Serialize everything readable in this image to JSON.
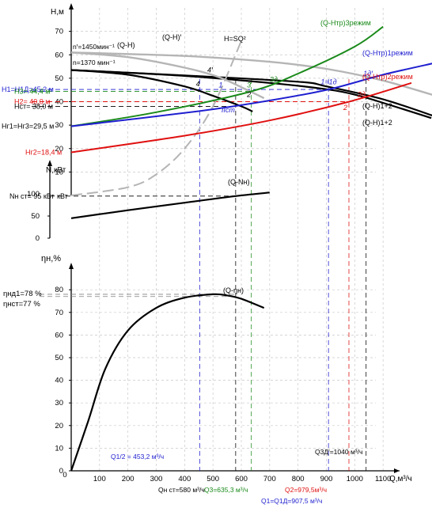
{
  "chart_data": {
    "type": "line",
    "x": {
      "label": "Q,м³/ч",
      "ticks": [
        100,
        200,
        300,
        400,
        500,
        600,
        700,
        800,
        900,
        1000,
        1100
      ],
      "range": [
        0,
        1200
      ]
    },
    "panels": {
      "head": {
        "label": "H,м",
        "ticks": [
          10,
          20,
          30,
          40,
          50,
          60,
          70
        ],
        "range": [
          0,
          80
        ]
      },
      "power": {
        "label": "N,кВт",
        "ticks": [
          0,
          50,
          100
        ],
        "range": [
          0,
          120
        ]
      },
      "efficiency": {
        "label": "ηн,%",
        "ticks": [
          0,
          10,
          20,
          30,
          40,
          50,
          60,
          70,
          80
        ],
        "range": [
          0,
          85
        ]
      }
    },
    "series": [
      {
        "name": "(Q-H)",
        "panel": "head",
        "color": "#000000",
        "dash": "solid",
        "width": 2.2,
        "x": [
          0,
          200,
          400,
          500,
          600,
          640
        ],
        "y": [
          53.5,
          51.5,
          46.5,
          42.5,
          38,
          35.8
        ]
      },
      {
        "name": "(Q-H)1+2",
        "panel": "head",
        "color": "#000000",
        "dash": "solid",
        "width": 2.2,
        "x": [
          0,
          400,
          700,
          900,
          1000,
          1100,
          1270
        ],
        "y": [
          53.5,
          51,
          48,
          45.3,
          43,
          39.5,
          33
        ]
      },
      {
        "name": "(Q-H)1+2",
        "panel": "head",
        "color": "#000000",
        "dash": "solid",
        "width": 2.2,
        "x": [
          0,
          400,
          800,
          900,
          1100,
          1300
        ],
        "y": [
          53.5,
          51.2,
          48.5,
          46.5,
          41,
          33
        ]
      },
      {
        "name": "(Q-H)ꞌ",
        "panel": "head",
        "color": "#b5b5b5",
        "dash": "solid",
        "width": 2.4,
        "x": [
          0,
          200,
          400,
          520,
          620,
          680
        ],
        "y": [
          61,
          59,
          54.5,
          50.5,
          45,
          41.5
        ]
      },
      {
        "name": "(Q-H)ꞌ",
        "panel": "head",
        "color": "#b5b5b5",
        "dash": "solid",
        "width": 2.4,
        "x": [
          0,
          400,
          700,
          900,
          1100,
          1300
        ],
        "y": [
          61,
          59.5,
          57,
          54,
          49,
          42
        ]
      },
      {
        "name": "H=SQ²",
        "panel": "head",
        "color": "#b5b5b5",
        "dash": "long-dash",
        "width": 2,
        "x": [
          0,
          200,
          300,
          400,
          500,
          600
        ],
        "y": [
          0,
          3.5,
          9,
          20,
          38,
          66
        ]
      },
      {
        "name": "(Q-Hтр)3режим",
        "panel": "head",
        "color": "#1a8a1a",
        "dash": "solid",
        "width": 2,
        "x": [
          0,
          300,
          635,
          800,
          1000,
          1100
        ],
        "y": [
          29.5,
          35.5,
          44.4,
          52,
          63.5,
          72
        ]
      },
      {
        "name": "(Q-Hтр)1режим",
        "panel": "head",
        "color": "#1f1fd0",
        "dash": "solid",
        "width": 2,
        "x": [
          0,
          453,
          700,
          907,
          1100,
          1300
        ],
        "y": [
          29.5,
          36,
          40.5,
          45.2,
          51.5,
          57
        ]
      },
      {
        "name": "(Q-Hтр)2режим",
        "panel": "head",
        "color": "#e01010",
        "dash": "solid",
        "width": 2,
        "x": [
          0,
          400,
          700,
          980,
          1200
        ],
        "y": [
          18.4,
          25.5,
          32,
          40,
          48
        ]
      },
      {
        "name": "(Q-Nн)",
        "panel": "power",
        "color": "#000000",
        "dash": "solid",
        "width": 2.2,
        "x": [
          0,
          200,
          400,
          580,
          700
        ],
        "y": [
          45,
          63,
          80,
          95,
          103
        ]
      },
      {
        "name": "(Q-ηн)",
        "panel": "efficiency",
        "color": "#000000",
        "dash": "solid",
        "width": 2.2,
        "x": [
          0,
          60,
          120,
          200,
          300,
          400,
          500,
          550,
          600,
          680
        ],
        "y": [
          0,
          22,
          45,
          62,
          72,
          76.5,
          78,
          77.5,
          76,
          72
        ]
      }
    ],
    "annotations": {
      "reference_lines": [
        {
          "label": "H1=H1Д=45,2 м",
          "y": 45.2,
          "color": "#1f1fd0",
          "to_x": 907.5
        },
        {
          "label": "H3= 44,4 м",
          "y": 44.4,
          "color": "#1a8a1a",
          "to_x": 635.3
        },
        {
          "label": "H2= 40,0 м",
          "y": 40.0,
          "color": "#e01010",
          "to_x": 979.5
        },
        {
          "label": "Hст= 38,0 м",
          "y": 38.0,
          "color": "#000000",
          "to_x": 580
        }
      ],
      "intercepts": [
        {
          "label": "Hг1=Hг3=29,5 м",
          "y": 29.5
        },
        {
          "label": "Hг2=18,4 м",
          "y": 18.4
        }
      ],
      "speed_labels": [
        "nꞌ=1450мин⁻¹",
        "n=1370 мин⁻¹"
      ],
      "power_label": "Nн ст= 95 кВт",
      "power_value": 95,
      "eff_labels": [
        {
          "label": "ηнд1=78 %",
          "value": 78
        },
        {
          "label": "ηнст=77 %",
          "value": 77
        }
      ],
      "q_lines": [
        {
          "label": "Q1/2 = 453,2 м³/ч",
          "x": 453.2,
          "color": "#1f1fd0"
        },
        {
          "label": "Qн ст=580 м³/ч",
          "x": 580,
          "color": "#000000"
        },
        {
          "label": "Q3=635,3 м³/ч",
          "x": 635.3,
          "color": "#1a8a1a"
        },
        {
          "label": "Q2=979,5м³/ч",
          "x": 979.5,
          "color": "#e01010"
        },
        {
          "label": "Q1=Q1Д=907,5 м³/ч",
          "x": 907.5,
          "color": "#1f1fd0"
        },
        {
          "label": "Q3Дꞌ=1040 м³/ч",
          "x": 1040,
          "color": "#000000"
        }
      ],
      "points": [
        {
          "label": "4",
          "x": 440,
          "y": 46.5,
          "color": "#000000"
        },
        {
          "label": "4ꞌ",
          "x": 480,
          "y": 52.5,
          "color": "#000000"
        },
        {
          "label": "1",
          "x": 520,
          "y": 46.0,
          "color": "#1f1fd0"
        },
        {
          "label": "3",
          "x": 620,
          "y": 46.0,
          "color": "#1a8a1a"
        },
        {
          "label": "2",
          "x": 620,
          "y": 42.0,
          "color": "#000000"
        },
        {
          "label": "IIст",
          "x": 530,
          "y": 35.5,
          "color": "#1f1fd0"
        },
        {
          "label": "3д",
          "x": 700,
          "y": 48.5,
          "color": "#1a8a1a"
        },
        {
          "label": "1=1д",
          "x": 880,
          "y": 47.5,
          "color": "#1f1fd0"
        },
        {
          "label": "1дꞌ",
          "x": 1030,
          "y": 51.0,
          "color": "#1f1fd0"
        },
        {
          "label": "2д",
          "x": 1010,
          "y": 42.0,
          "color": "#e01010"
        },
        {
          "label": "2",
          "x": 960,
          "y": 36.5,
          "color": "#e01010"
        }
      ],
      "curve_labels": [
        {
          "text": "(Q-Hтр)3режим",
          "color": "#1a8a1a"
        },
        {
          "text": "(Q-Hтр)1режим",
          "color": "#1f1fd0"
        },
        {
          "text": "(Q-Hтр)2режим",
          "color": "#e01010"
        },
        {
          "text": "(Q-H)1+2",
          "color": "#000000"
        },
        {
          "text": "(Q-H)1+2",
          "color": "#000000"
        },
        {
          "text": "(Q-H)",
          "color": "#000000"
        },
        {
          "text": "(Q-H)ꞌ",
          "color": "#000000"
        },
        {
          "text": "H=SQ²",
          "color": "#000000"
        },
        {
          "text": "(Q-Nн)",
          "color": "#000000"
        },
        {
          "text": "(Q-ηн)",
          "color": "#000000"
        }
      ]
    }
  }
}
